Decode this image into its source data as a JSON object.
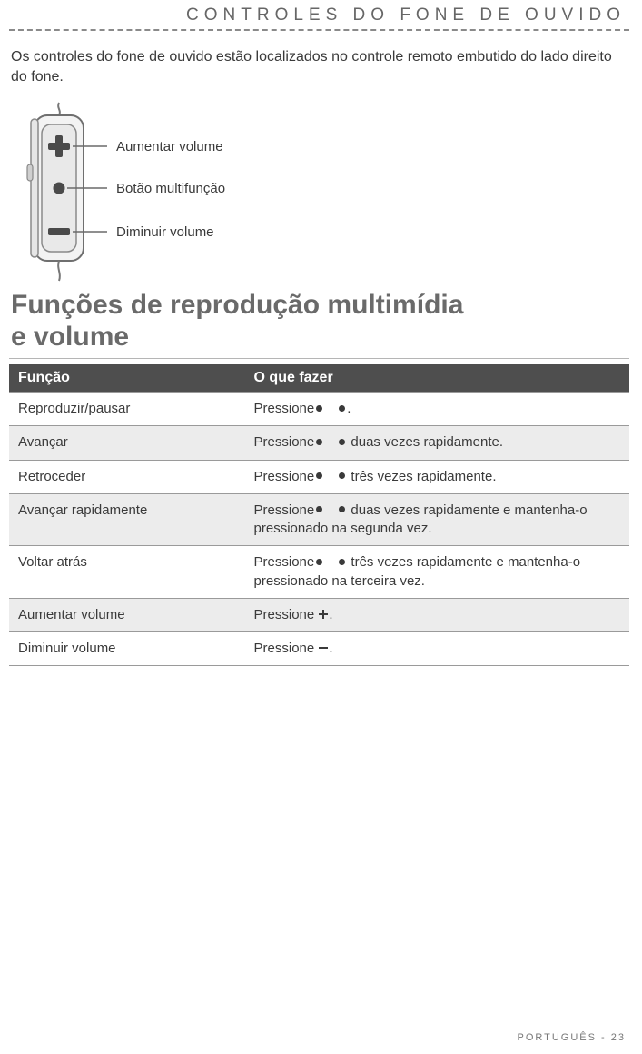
{
  "header": {
    "title": "CONTROLES DO FONE DE OUVIDO"
  },
  "intro": {
    "lead": "Os controles",
    "rest": " do fone de ouvido estão localizados no controle remoto embutido do lado direito do fone."
  },
  "diagram": {
    "labels": {
      "volume_up": "Aumentar volume",
      "multifunction": "Botão multifunção",
      "volume_down": "Diminuir volume"
    }
  },
  "section_heading_line1": "Funções de reprodução multimídia",
  "section_heading_line2": "e volume",
  "table": {
    "headers": {
      "func": "Função",
      "action": "O que fazer"
    },
    "rows": [
      {
        "func": "Reproduzir/pausar",
        "action_pre": "Pressione",
        "icons": [
          "dot",
          "gap",
          "dot"
        ],
        "action_post": "."
      },
      {
        "func": "Avançar",
        "action_pre": "Pressione",
        "icons": [
          "dot",
          "gap",
          "dot"
        ],
        "action_post": " duas vezes rapidamente."
      },
      {
        "func": "Retroceder",
        "action_pre": "Pressione",
        "icons": [
          "dot",
          "gap",
          "dot"
        ],
        "action_post": " três vezes rapidamente."
      },
      {
        "func": "Avançar rapidamente",
        "action_pre": "Pressione",
        "icons": [
          "dot",
          "gap",
          "dot"
        ],
        "action_post": " duas vezes rapidamente e mantenha-o pressionado na segunda vez."
      },
      {
        "func": "Voltar atrás",
        "action_pre": "Pressione",
        "icons": [
          "dot",
          "gap",
          "dot"
        ],
        "action_post": " três vezes rapidamente e mantenha-o pressionado na terceira vez."
      },
      {
        "func": "Aumentar volume",
        "action_pre": "Pressione ",
        "icons": [
          "plus"
        ],
        "action_post": "."
      },
      {
        "func": "Diminuir volume",
        "action_pre": "Pressione ",
        "icons": [
          "minus"
        ],
        "action_post": "."
      }
    ]
  },
  "footer": {
    "text": "PORTUGUÊS - 23"
  },
  "colors": {
    "header_bg": "#4e4e4e",
    "alt_row": "#ececec",
    "text": "#3a3a3a",
    "heading": "#6a6a6a",
    "rule": "#b5b5b5",
    "dash": "#8a8a8a"
  }
}
